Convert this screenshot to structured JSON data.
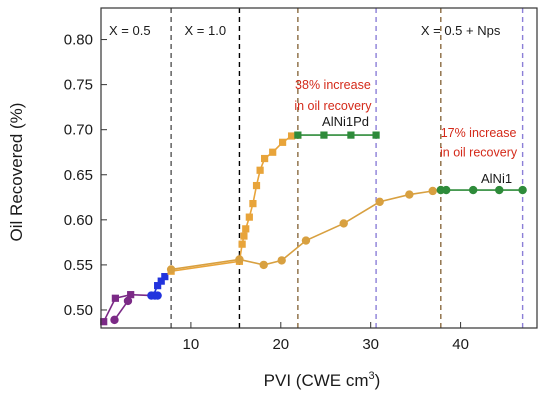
{
  "chart_data": {
    "type": "scatter",
    "xlabel": "PVI (CWE cm³)",
    "ylabel": "Oil Recovered (%)",
    "xlim": [
      0,
      48.5
    ],
    "ylim": [
      0.48,
      0.835
    ],
    "x_ticks": [
      10,
      20,
      30,
      40
    ],
    "y_ticks": [
      0.5,
      0.55,
      0.6,
      0.65,
      0.7,
      0.75,
      0.8
    ],
    "y_tick_labels": [
      "0.50",
      "0.55",
      "0.60",
      "0.65",
      "0.70",
      "0.75",
      "0.80"
    ],
    "grid": false,
    "regions": [
      {
        "label": "X = 0.5",
        "x": 3.2,
        "y": 0.805
      },
      {
        "label": "X = 1.0",
        "x": 11.6,
        "y": 0.805
      },
      {
        "label": "X = 0.5 + Nps",
        "x": 40.0,
        "y": 0.805
      }
    ],
    "vlines": [
      {
        "x": 7.8,
        "color": "#555555"
      },
      {
        "x": 15.4,
        "color": "#000000"
      },
      {
        "x": 21.9,
        "color": "#8a6a40"
      },
      {
        "x": 30.6,
        "color": "#8c7fd8"
      },
      {
        "x": 37.8,
        "color": "#8a6a40"
      },
      {
        "x": 46.9,
        "color": "#8c7fd8"
      }
    ],
    "series": [
      {
        "marker": "square",
        "color": "#7b2a86",
        "x": [
          0.3,
          1.6,
          3.3,
          5.8
        ],
        "y": [
          0.487,
          0.513,
          0.517,
          0.516
        ]
      },
      {
        "marker": "square",
        "color": "#2233dd",
        "x": [
          5.8,
          6.3,
          6.7,
          7.1
        ],
        "y": [
          0.516,
          0.527,
          0.532,
          0.537
        ]
      },
      {
        "marker": "square",
        "color": "#e8a43a",
        "x": [
          7.8,
          15.4,
          15.7,
          15.9,
          16.1,
          16.5,
          16.9,
          17.3,
          17.7,
          18.2,
          19.1,
          20.2,
          21.2,
          21.9
        ],
        "y": [
          0.543,
          0.554,
          0.573,
          0.582,
          0.59,
          0.603,
          0.618,
          0.638,
          0.655,
          0.668,
          0.675,
          0.686,
          0.693,
          0.694
        ]
      },
      {
        "name": "AlNi1Pd",
        "marker": "square",
        "color": "#2e8b3a",
        "x": [
          21.9,
          24.8,
          27.8,
          30.6
        ],
        "y": [
          0.694,
          0.694,
          0.694,
          0.694
        ]
      },
      {
        "marker": "circle",
        "color": "#7b2a86",
        "x": [
          1.5,
          3.0
        ],
        "y": [
          0.489,
          0.51
        ]
      },
      {
        "marker": "circle",
        "color": "#2233dd",
        "x": [
          5.6,
          6.0,
          6.3
        ],
        "y": [
          0.516,
          0.516,
          0.516
        ]
      },
      {
        "marker": "circle",
        "color": "#d8a040",
        "x": [
          7.8,
          15.4,
          18.1,
          20.1,
          22.8,
          27.0,
          31.0,
          34.3,
          36.9,
          37.8
        ],
        "y": [
          0.545,
          0.556,
          0.55,
          0.555,
          0.577,
          0.596,
          0.62,
          0.628,
          0.632,
          0.633
        ]
      },
      {
        "name": "AlNi1",
        "marker": "circle",
        "color": "#2e8b3a",
        "x": [
          37.8,
          38.4,
          41.4,
          44.3,
          46.9
        ],
        "y": [
          0.633,
          0.633,
          0.633,
          0.633,
          0.633
        ]
      }
    ],
    "annotations": [
      {
        "text": "38% increase",
        "x": 25.8,
        "y": 0.745,
        "color": "#d42a1a"
      },
      {
        "text": "in oil recovery",
        "x": 25.8,
        "y": 0.722,
        "color": "#d42a1a"
      },
      {
        "text": "AlNi1Pd",
        "x": 27.2,
        "y": 0.704,
        "color": "#1a1a1a"
      },
      {
        "text": "17% increase",
        "x": 42.0,
        "y": 0.692,
        "color": "#d42a1a"
      },
      {
        "text": "in oil recovery",
        "x": 42.0,
        "y": 0.67,
        "color": "#d42a1a"
      },
      {
        "text": "AlNi1",
        "x": 44.0,
        "y": 0.641,
        "color": "#1a1a1a"
      }
    ]
  }
}
